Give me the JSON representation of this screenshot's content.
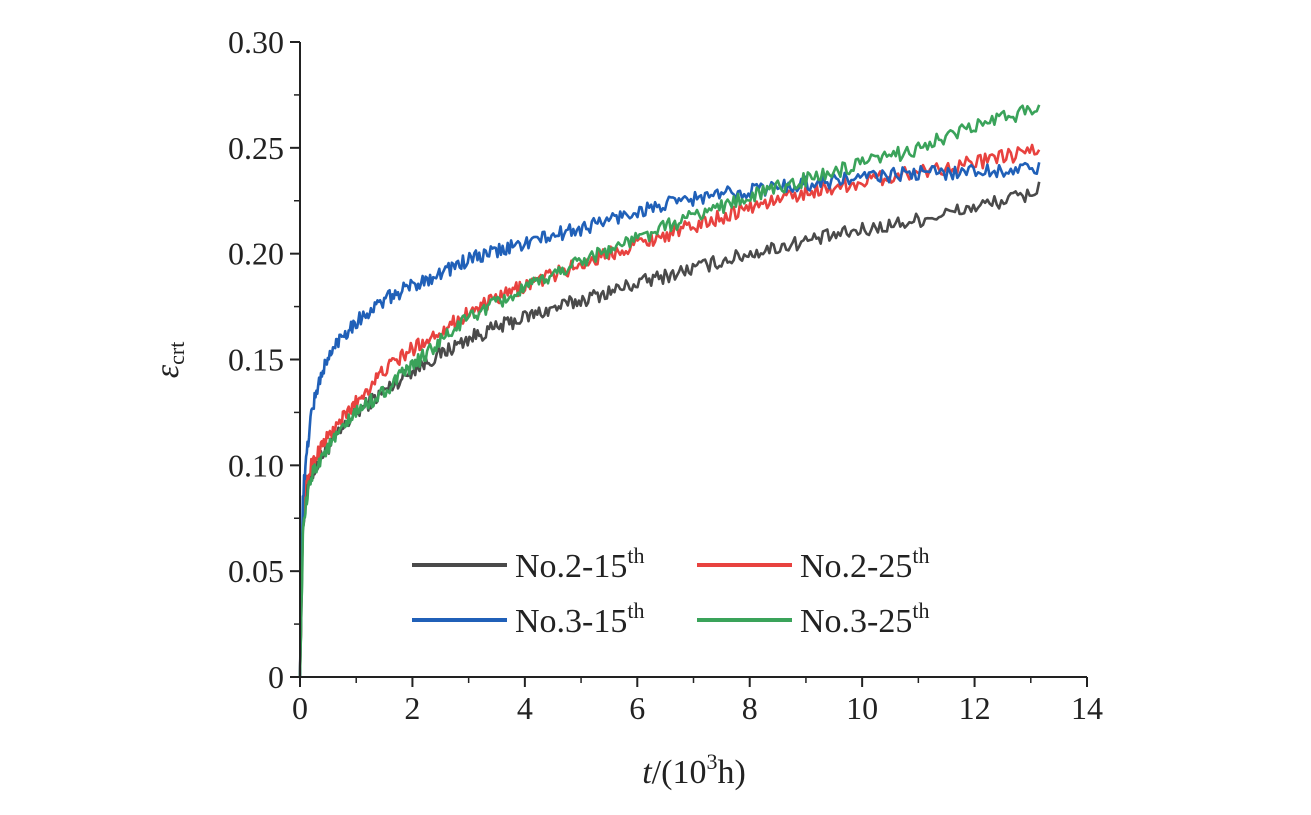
{
  "chart_data": {
    "type": "line",
    "title": "",
    "xlabel": {
      "var": "t",
      "rest": "/(10",
      "sup": "3",
      "tail": "h)"
    },
    "ylabel": {
      "main": "ε",
      "sub": "crt"
    },
    "xlim": [
      0,
      14
    ],
    "ylim": [
      0,
      0.3
    ],
    "x_ticks": [
      "0",
      "2",
      "4",
      "6",
      "8",
      "10",
      "12",
      "14"
    ],
    "y_ticks": [
      "0",
      "0.05",
      "0.10",
      "0.15",
      "0.20",
      "0.25",
      "0.30"
    ],
    "grid": false,
    "legend_position": "bottom-center",
    "series": [
      {
        "name": "No.2-15",
        "sup": "th",
        "color": "#4a4a4a",
        "x": [
          0,
          0.05,
          0.1,
          0.2,
          0.4,
          0.7,
          1,
          1.5,
          2,
          3,
          4,
          5,
          6,
          7,
          8,
          9,
          10,
          11,
          12,
          13,
          13.15
        ],
        "y": [
          0,
          0.07,
          0.085,
          0.095,
          0.105,
          0.115,
          0.125,
          0.135,
          0.145,
          0.16,
          0.17,
          0.178,
          0.186,
          0.193,
          0.2,
          0.206,
          0.211,
          0.216,
          0.222,
          0.228,
          0.232
        ]
      },
      {
        "name": "No.2-25",
        "sup": "th",
        "color": "#e8423f",
        "x": [
          0,
          0.05,
          0.1,
          0.2,
          0.4,
          0.7,
          1,
          1.5,
          2,
          3,
          4,
          5,
          6,
          7,
          8,
          9,
          10,
          11,
          12,
          13,
          13.15
        ],
        "y": [
          0,
          0.075,
          0.09,
          0.1,
          0.11,
          0.12,
          0.13,
          0.145,
          0.155,
          0.172,
          0.185,
          0.195,
          0.205,
          0.213,
          0.222,
          0.229,
          0.234,
          0.239,
          0.243,
          0.248,
          0.25
        ]
      },
      {
        "name": "No.3-15",
        "sup": "th",
        "color": "#2060b8",
        "x": [
          0,
          0.05,
          0.1,
          0.2,
          0.4,
          0.7,
          1,
          1.5,
          2,
          3,
          4,
          5,
          6,
          7,
          8,
          9,
          10,
          11,
          12,
          13,
          13.15
        ],
        "y": [
          0,
          0.085,
          0.1,
          0.125,
          0.145,
          0.16,
          0.168,
          0.178,
          0.185,
          0.197,
          0.205,
          0.212,
          0.22,
          0.226,
          0.23,
          0.233,
          0.236,
          0.238,
          0.239,
          0.24,
          0.24
        ]
      },
      {
        "name": "No.3-25",
        "sup": "th",
        "color": "#3aa35a",
        "x": [
          0,
          0.05,
          0.1,
          0.2,
          0.4,
          0.7,
          1,
          1.5,
          2,
          3,
          4,
          5,
          6,
          7,
          8,
          9,
          10,
          11,
          12,
          13,
          13.15
        ],
        "y": [
          0,
          0.065,
          0.08,
          0.095,
          0.105,
          0.115,
          0.125,
          0.135,
          0.147,
          0.17,
          0.183,
          0.197,
          0.207,
          0.218,
          0.227,
          0.235,
          0.242,
          0.25,
          0.26,
          0.268,
          0.27
        ]
      }
    ]
  }
}
